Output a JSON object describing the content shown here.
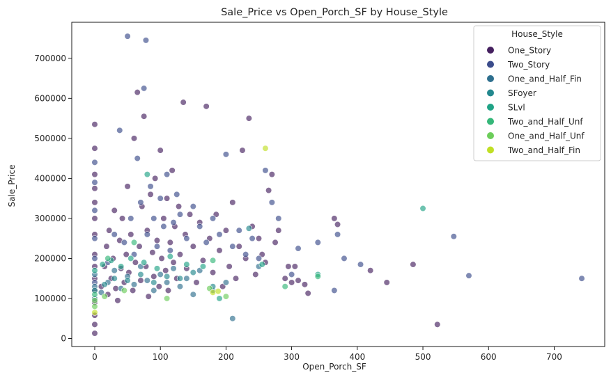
{
  "chart_data": {
    "type": "scatter",
    "title": "Sale_Price vs Open_Porch_SF by House_Style",
    "xlabel": "Open_Porch_SF",
    "ylabel": "Sale_Price",
    "xlim": [
      -35,
      777
    ],
    "ylim": [
      -20000,
      790000
    ],
    "xticks": [
      0,
      100,
      200,
      300,
      400,
      500,
      600,
      700
    ],
    "yticks": [
      0,
      100000,
      200000,
      300000,
      400000,
      500000,
      600000,
      700000
    ],
    "grid": false,
    "legend_title": "House_Style",
    "legend_position": "top-right",
    "marker_alpha": 0.65,
    "series": [
      {
        "name": "One_Story",
        "color": "#45205f",
        "points": [
          [
            0,
            13000
          ],
          [
            0,
            35000
          ],
          [
            0,
            58000
          ],
          [
            0,
            90000
          ],
          [
            0,
            120000
          ],
          [
            0,
            150000
          ],
          [
            0,
            180000
          ],
          [
            0,
            210000
          ],
          [
            0,
            260000
          ],
          [
            0,
            300000
          ],
          [
            0,
            340000
          ],
          [
            0,
            375000
          ],
          [
            0,
            410000
          ],
          [
            0,
            475000
          ],
          [
            0,
            535000
          ],
          [
            10,
            130000
          ],
          [
            15,
            180000
          ],
          [
            18,
            230000
          ],
          [
            20,
            110000
          ],
          [
            22,
            270000
          ],
          [
            25,
            150000
          ],
          [
            28,
            200000
          ],
          [
            30,
            320000
          ],
          [
            32,
            125000
          ],
          [
            35,
            95000
          ],
          [
            38,
            245000
          ],
          [
            40,
            175000
          ],
          [
            42,
            300000
          ],
          [
            45,
            140000
          ],
          [
            48,
            210000
          ],
          [
            50,
            380000
          ],
          [
            52,
            165000
          ],
          [
            55,
            260000
          ],
          [
            58,
            120000
          ],
          [
            60,
            500000
          ],
          [
            62,
            190000
          ],
          [
            65,
            615000
          ],
          [
            68,
            230000
          ],
          [
            70,
            145000
          ],
          [
            72,
            330000
          ],
          [
            75,
            555000
          ],
          [
            78,
            180000
          ],
          [
            80,
            270000
          ],
          [
            82,
            105000
          ],
          [
            85,
            360000
          ],
          [
            88,
            215000
          ],
          [
            90,
            155000
          ],
          [
            92,
            400000
          ],
          [
            95,
            245000
          ],
          [
            98,
            130000
          ],
          [
            100,
            470000
          ],
          [
            102,
            200000
          ],
          [
            105,
            300000
          ],
          [
            108,
            170000
          ],
          [
            110,
            350000
          ],
          [
            112,
            120000
          ],
          [
            115,
            240000
          ],
          [
            118,
            420000
          ],
          [
            120,
            190000
          ],
          [
            122,
            280000
          ],
          [
            125,
            150000
          ],
          [
            128,
            330000
          ],
          [
            130,
            210000
          ],
          [
            135,
            590000
          ],
          [
            138,
            260000
          ],
          [
            140,
            175000
          ],
          [
            145,
            310000
          ],
          [
            150,
            230000
          ],
          [
            155,
            140000
          ],
          [
            160,
            290000
          ],
          [
            165,
            195000
          ],
          [
            170,
            580000
          ],
          [
            175,
            250000
          ],
          [
            180,
            165000
          ],
          [
            185,
            310000
          ],
          [
            190,
            220000
          ],
          [
            195,
            130000
          ],
          [
            200,
            270000
          ],
          [
            205,
            180000
          ],
          [
            210,
            340000
          ],
          [
            215,
            150000
          ],
          [
            220,
            230000
          ],
          [
            225,
            470000
          ],
          [
            230,
            200000
          ],
          [
            235,
            550000
          ],
          [
            240,
            280000
          ],
          [
            245,
            160000
          ],
          [
            250,
            250000
          ],
          [
            255,
            210000
          ],
          [
            260,
            190000
          ],
          [
            265,
            370000
          ],
          [
            270,
            410000
          ],
          [
            275,
            240000
          ],
          [
            280,
            270000
          ],
          [
            290,
            150000
          ],
          [
            295,
            180000
          ],
          [
            300,
            140000
          ],
          [
            305,
            180000
          ],
          [
            310,
            145000
          ],
          [
            320,
            135000
          ],
          [
            325,
            113000
          ],
          [
            365,
            300000
          ],
          [
            370,
            285000
          ],
          [
            420,
            170000
          ],
          [
            445,
            140000
          ],
          [
            485,
            185000
          ],
          [
            522,
            35000
          ]
        ]
      },
      {
        "name": "Two_Story",
        "color": "#3b4c8b",
        "points": [
          [
            0,
            140000
          ],
          [
            0,
            200000
          ],
          [
            0,
            250000
          ],
          [
            0,
            320000
          ],
          [
            0,
            390000
          ],
          [
            0,
            440000
          ],
          [
            20,
            190000
          ],
          [
            30,
            260000
          ],
          [
            38,
            520000
          ],
          [
            45,
            240000
          ],
          [
            50,
            755000
          ],
          [
            55,
            300000
          ],
          [
            60,
            210000
          ],
          [
            65,
            450000
          ],
          [
            70,
            340000
          ],
          [
            75,
            625000
          ],
          [
            78,
            745000
          ],
          [
            80,
            260000
          ],
          [
            85,
            380000
          ],
          [
            90,
            300000
          ],
          [
            95,
            230000
          ],
          [
            100,
            350000
          ],
          [
            105,
            280000
          ],
          [
            110,
            410000
          ],
          [
            115,
            220000
          ],
          [
            120,
            290000
          ],
          [
            125,
            360000
          ],
          [
            130,
            310000
          ],
          [
            140,
            250000
          ],
          [
            150,
            330000
          ],
          [
            160,
            280000
          ],
          [
            170,
            240000
          ],
          [
            180,
            300000
          ],
          [
            190,
            260000
          ],
          [
            200,
            460000
          ],
          [
            210,
            230000
          ],
          [
            220,
            270000
          ],
          [
            230,
            210000
          ],
          [
            240,
            250000
          ],
          [
            250,
            200000
          ],
          [
            260,
            420000
          ],
          [
            270,
            340000
          ],
          [
            280,
            300000
          ],
          [
            300,
            160000
          ],
          [
            310,
            225000
          ],
          [
            340,
            240000
          ],
          [
            365,
            120000
          ],
          [
            370,
            260000
          ],
          [
            380,
            200000
          ],
          [
            405,
            185000
          ],
          [
            547,
            255000
          ],
          [
            570,
            157000
          ],
          [
            742,
            150000
          ]
        ]
      },
      {
        "name": "One_and_Half_Fin",
        "color": "#2e6f8e",
        "points": [
          [
            0,
            100000
          ],
          [
            0,
            130000
          ],
          [
            0,
            160000
          ],
          [
            10,
            115000
          ],
          [
            20,
            140000
          ],
          [
            30,
            170000
          ],
          [
            40,
            125000
          ],
          [
            50,
            155000
          ],
          [
            60,
            135000
          ],
          [
            70,
            180000
          ],
          [
            80,
            145000
          ],
          [
            90,
            120000
          ],
          [
            100,
            160000
          ],
          [
            110,
            140000
          ],
          [
            120,
            175000
          ],
          [
            130,
            130000
          ],
          [
            140,
            150000
          ],
          [
            150,
            110000
          ],
          [
            160,
            170000
          ],
          [
            180,
            120000
          ],
          [
            200,
            140000
          ],
          [
            210,
            50000
          ],
          [
            250,
            180000
          ]
        ]
      },
      {
        "name": "SFoyer",
        "color": "#23888e",
        "points": [
          [
            0,
            120000
          ],
          [
            15,
            135000
          ],
          [
            30,
            150000
          ],
          [
            50,
            145000
          ],
          [
            70,
            160000
          ],
          [
            90,
            140000
          ],
          [
            110,
            155000
          ],
          [
            130,
            150000
          ],
          [
            150,
            165000
          ],
          [
            180,
            130000
          ],
          [
            235,
            275000
          ]
        ]
      },
      {
        "name": "SLvl",
        "color": "#20a386",
        "points": [
          [
            0,
            170000
          ],
          [
            12,
            185000
          ],
          [
            25,
            195000
          ],
          [
            40,
            180000
          ],
          [
            55,
            200000
          ],
          [
            75,
            190000
          ],
          [
            80,
            410000
          ],
          [
            95,
            175000
          ],
          [
            115,
            205000
          ],
          [
            140,
            185000
          ],
          [
            165,
            180000
          ],
          [
            190,
            100000
          ],
          [
            255,
            185000
          ],
          [
            340,
            160000
          ],
          [
            500,
            325000
          ]
        ]
      },
      {
        "name": "Two_and_Half_Unf",
        "color": "#35b779",
        "points": [
          [
            0,
            110000
          ],
          [
            20,
            200000
          ],
          [
            60,
            240000
          ],
          [
            180,
            195000
          ],
          [
            290,
            130000
          ],
          [
            340,
            155000
          ]
        ]
      },
      {
        "name": "One_and_Half_Unf",
        "color": "#6ccd5a",
        "points": [
          [
            0,
            80000
          ],
          [
            0,
            95000
          ],
          [
            15,
            105000
          ],
          [
            45,
            120000
          ],
          [
            110,
            100000
          ],
          [
            175,
            125000
          ],
          [
            200,
            105000
          ]
        ]
      },
      {
        "name": "Two_and_Half_Fin",
        "color": "#c0df25",
        "points": [
          [
            0,
            65000
          ],
          [
            180,
            115000
          ],
          [
            188,
            118000
          ],
          [
            260,
            475000
          ]
        ]
      }
    ]
  }
}
